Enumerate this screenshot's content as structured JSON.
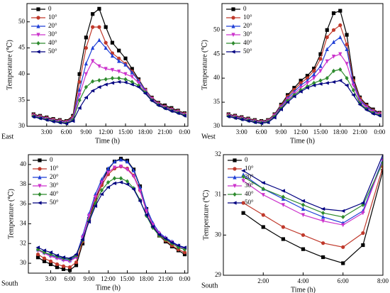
{
  "chart_data": [
    {
      "type": "line",
      "corner_label": "East",
      "x_label": "Time (h)",
      "y_label": "Temperature (℃)",
      "legend": "upper left",
      "x": [
        1,
        2,
        3,
        4,
        5,
        6,
        7,
        8,
        9,
        10,
        11,
        12,
        13,
        14,
        15,
        16,
        17,
        18,
        19,
        20,
        21,
        22,
        23,
        24
      ],
      "xlim": [
        0,
        24.5
      ],
      "ylim": [
        30,
        53.5
      ],
      "xticks": [
        {
          "value": 3,
          "label": "3:00"
        },
        {
          "value": 6,
          "label": "6:00"
        },
        {
          "value": 9,
          "label": "9:00"
        },
        {
          "value": 12,
          "label": "12:00"
        },
        {
          "value": 15,
          "label": "15:00"
        },
        {
          "value": 18,
          "label": "18:00"
        },
        {
          "value": 21,
          "label": "21:00"
        },
        {
          "value": 24,
          "label": "0:00"
        }
      ],
      "yticks": [
        30,
        35,
        40,
        45,
        50
      ],
      "series": [
        {
          "name": "0",
          "color": "#000000",
          "values": [
            32.3,
            32.0,
            31.7,
            31.4,
            31.2,
            31.0,
            32,
            40,
            47,
            51.5,
            52.5,
            49,
            46,
            44.5,
            43,
            41,
            39,
            37,
            35.5,
            34.5,
            34,
            33.5,
            33,
            32.5
          ]
        },
        {
          "name": "10°",
          "color": "#c0392b",
          "values": [
            32.2,
            31.9,
            31.6,
            31.3,
            31.1,
            30.9,
            31.8,
            38.5,
            45,
            49,
            49,
            46,
            44,
            43,
            42,
            40.5,
            38.8,
            37,
            35.4,
            34.4,
            33.8,
            33.3,
            32.9,
            32.4
          ]
        },
        {
          "name": "20°",
          "color": "#1f3fd6",
          "values": [
            32.1,
            31.8,
            31.5,
            31.2,
            31.0,
            30.8,
            31.6,
            37,
            42,
            45,
            46.5,
            45,
            43.5,
            42.5,
            41.8,
            40.3,
            38.7,
            36.9,
            35.3,
            34.3,
            33.7,
            33.2,
            32.8,
            32.3
          ]
        },
        {
          "name": "30°",
          "color": "#cc33cc",
          "values": [
            32.0,
            31.7,
            31.4,
            31.1,
            30.9,
            30.7,
            31.4,
            36,
            40,
            42.5,
            41.5,
            41,
            40.8,
            40.5,
            40,
            39.5,
            38.3,
            36.7,
            35.2,
            34.2,
            33.6,
            33.1,
            32.7,
            32.2
          ]
        },
        {
          "name": "40°",
          "color": "#2e8b2e",
          "values": [
            31.9,
            31.6,
            31.3,
            31.0,
            30.8,
            30.6,
            31.2,
            35,
            37.5,
            38.6,
            38.8,
            39,
            39.2,
            39.2,
            39,
            38.5,
            37.8,
            36.5,
            35,
            34.1,
            33.5,
            33,
            32.6,
            32.1
          ]
        },
        {
          "name": "50°",
          "color": "#000080",
          "values": [
            31.8,
            31.5,
            31.2,
            30.9,
            30.7,
            30.5,
            31,
            33.5,
            35.5,
            36.8,
            37.5,
            38,
            38.3,
            38.5,
            38.4,
            38,
            37.5,
            36.3,
            34.9,
            34,
            33.4,
            32.9,
            32.5,
            32.0
          ]
        }
      ]
    },
    {
      "type": "line",
      "corner_label": "West",
      "x_label": "Time (h)",
      "y_label": "Temperature (℃)",
      "legend": "upper left",
      "x": [
        1,
        2,
        3,
        4,
        5,
        6,
        7,
        8,
        9,
        10,
        11,
        12,
        13,
        14,
        15,
        16,
        17,
        18,
        19,
        20,
        21,
        22,
        23,
        24
      ],
      "xlim": [
        0,
        24.5
      ],
      "ylim": [
        30,
        55.5
      ],
      "xticks": [
        {
          "value": 3,
          "label": "3:00"
        },
        {
          "value": 6,
          "label": "6:00"
        },
        {
          "value": 9,
          "label": "9:00"
        },
        {
          "value": 12,
          "label": "12:00"
        },
        {
          "value": 15,
          "label": "15:00"
        },
        {
          "value": 18,
          "label": "18:00"
        },
        {
          "value": 21,
          "label": "21:00"
        },
        {
          "value": 24,
          "label": "0:00"
        }
      ],
      "yticks": [
        30,
        35,
        40,
        45,
        50
      ],
      "series": [
        {
          "name": "0",
          "color": "#000000",
          "values": [
            32.5,
            32.2,
            31.9,
            31.6,
            31.3,
            31.1,
            31.3,
            32.5,
            34.5,
            36.5,
            38,
            39.5,
            40.5,
            42,
            45,
            50,
            53.5,
            54,
            49,
            40,
            36,
            34.5,
            33.5,
            32.8
          ]
        },
        {
          "name": "10°",
          "color": "#c0392b",
          "values": [
            32.4,
            32.1,
            31.8,
            31.5,
            31.2,
            31.0,
            31.2,
            32.4,
            34.3,
            36.2,
            37.6,
            39,
            40,
            41.5,
            44,
            48.5,
            50,
            51,
            47,
            39.5,
            35.8,
            34.3,
            33.3,
            32.7
          ]
        },
        {
          "name": "20°",
          "color": "#1f3fd6",
          "values": [
            32.3,
            32,
            31.7,
            31.4,
            31.1,
            30.9,
            31.1,
            32.3,
            34.1,
            35.9,
            37.2,
            38.5,
            39.5,
            40.8,
            42.5,
            46,
            47.5,
            48.5,
            46,
            39,
            35.5,
            34.1,
            33.2,
            32.6
          ]
        },
        {
          "name": "30°",
          "color": "#cc33cc",
          "values": [
            32.2,
            31.9,
            31.6,
            31.3,
            31,
            30.8,
            31,
            32.2,
            33.9,
            35.6,
            36.8,
            38,
            39,
            40,
            41.5,
            43.5,
            44.5,
            45,
            43,
            38.5,
            35.2,
            33.9,
            33,
            32.5
          ]
        },
        {
          "name": "40°",
          "color": "#2e8b2e",
          "values": [
            32.1,
            31.8,
            31.5,
            31.2,
            30.9,
            30.7,
            30.9,
            32,
            33.7,
            35.3,
            36.5,
            37.5,
            38.3,
            39,
            39.5,
            40,
            41.5,
            41.8,
            40,
            37.5,
            34.8,
            33.6,
            32.8,
            32.3
          ]
        },
        {
          "name": "50°",
          "color": "#000080",
          "values": [
            32,
            31.7,
            31.4,
            31.1,
            30.8,
            30.6,
            30.8,
            31.8,
            33.5,
            35,
            36.2,
            37.2,
            38,
            38.5,
            38.8,
            39,
            39.2,
            39.5,
            38.5,
            36.5,
            34.5,
            33.4,
            32.6,
            32.2
          ]
        }
      ]
    },
    {
      "type": "line",
      "corner_label": "South",
      "x_label": "Time (h)",
      "y_label": "Temperature (℃)",
      "legend": "upper left",
      "x": [
        1,
        2,
        3,
        4,
        5,
        6,
        7,
        8,
        9,
        10,
        11,
        12,
        13,
        14,
        15,
        16,
        17,
        18,
        19,
        20,
        21,
        22,
        23,
        24
      ],
      "xlim": [
        -0.5,
        24.5
      ],
      "ylim": [
        29,
        41
      ],
      "xticks": [
        {
          "value": 3,
          "label": "3:00"
        },
        {
          "value": 6,
          "label": "6:00"
        },
        {
          "value": 9,
          "label": "9:00"
        },
        {
          "value": 12,
          "label": "12:00"
        },
        {
          "value": 15,
          "label": "15:00"
        },
        {
          "value": 18,
          "label": "18:00"
        },
        {
          "value": 21,
          "label": "21:00"
        },
        {
          "value": 24,
          "label": "0:00"
        }
      ],
      "yticks": [
        30,
        32,
        34,
        36,
        38,
        40
      ],
      "series": [
        {
          "name": "0",
          "color": "#000000",
          "values": [
            30.6,
            30.2,
            29.9,
            29.6,
            29.4,
            29.3,
            29.8,
            32,
            34.5,
            36.5,
            38.2,
            39.5,
            40.3,
            40.6,
            40.4,
            39.5,
            37.8,
            35.5,
            33.8,
            32.8,
            32.2,
            31.7,
            31.3,
            30.9
          ]
        },
        {
          "name": "10°",
          "color": "#c0392b",
          "values": [
            30.9,
            30.5,
            30.2,
            29.9,
            29.7,
            29.6,
            30.1,
            32.2,
            34.4,
            36.3,
            37.9,
            39,
            39.6,
            39.8,
            39.6,
            38.9,
            37.4,
            35.3,
            33.8,
            32.8,
            32.3,
            31.8,
            31.4,
            31.1
          ]
        },
        {
          "name": "20°",
          "color": "#1f3fd6",
          "values": [
            31.4,
            31.1,
            30.8,
            30.6,
            30.4,
            30.3,
            30.7,
            32.8,
            35,
            37,
            38.5,
            39.6,
            40.3,
            40.5,
            40.3,
            39.4,
            37.7,
            35.6,
            34.1,
            33.1,
            32.6,
            32.2,
            31.8,
            31.5
          ]
        },
        {
          "name": "30°",
          "color": "#cc33cc",
          "values": [
            31.3,
            31,
            30.7,
            30.5,
            30.3,
            30.2,
            30.6,
            32.6,
            34.8,
            36.7,
            38.2,
            39.2,
            39.7,
            39.8,
            39.5,
            38.8,
            37.3,
            35.3,
            33.9,
            33,
            32.5,
            32.1,
            31.7,
            31.4
          ]
        },
        {
          "name": "40°",
          "color": "#2e8b2e",
          "values": [
            31.4,
            31.1,
            30.9,
            30.7,
            30.5,
            30.4,
            30.8,
            32.3,
            34.3,
            36.1,
            37.4,
            38.2,
            38.6,
            38.6,
            38.3,
            37.6,
            36.4,
            34.8,
            33.6,
            32.8,
            32.4,
            32,
            31.6,
            31.4
          ]
        },
        {
          "name": "50°",
          "color": "#000080",
          "values": [
            31.6,
            31.3,
            31.1,
            30.8,
            30.6,
            30.5,
            30.9,
            32.4,
            34.2,
            35.8,
            37,
            37.7,
            38.1,
            38.2,
            38,
            37.5,
            36.3,
            34.9,
            33.7,
            32.9,
            32.5,
            32.1,
            31.8,
            31.6
          ]
        }
      ]
    },
    {
      "type": "line",
      "corner_label": "South",
      "x_label": "Time (h)",
      "y_label": "Temperature (℃)",
      "legend": "upper left",
      "x": [
        1,
        2,
        3,
        4,
        5,
        6,
        7,
        8
      ],
      "xlim": [
        0,
        8
      ],
      "ylim": [
        29,
        32
      ],
      "xticks": [
        {
          "value": 2,
          "label": "2:00"
        },
        {
          "value": 4,
          "label": "4:00"
        },
        {
          "value": 6,
          "label": "6:00"
        },
        {
          "value": 8,
          "label": "8:00"
        }
      ],
      "yticks": [
        29,
        30,
        31,
        32
      ],
      "series": [
        {
          "name": "0",
          "color": "#000000",
          "values": [
            30.55,
            30.2,
            29.9,
            29.65,
            29.45,
            29.3,
            29.75,
            31.6
          ]
        },
        {
          "name": "10°",
          "color": "#c0392b",
          "values": [
            30.8,
            30.5,
            30.2,
            30.0,
            29.8,
            29.7,
            30.05,
            31.7
          ]
        },
        {
          "name": "20°",
          "color": "#1f3fd6",
          "values": [
            31.5,
            31.15,
            30.9,
            30.65,
            30.45,
            30.3,
            30.6,
            31.9
          ]
        },
        {
          "name": "30°",
          "color": "#cc33cc",
          "values": [
            31.35,
            31.0,
            30.75,
            30.5,
            30.35,
            30.25,
            30.55,
            31.85
          ]
        },
        {
          "name": "40°",
          "color": "#2e8b2e",
          "values": [
            31.45,
            31.15,
            30.95,
            30.75,
            30.55,
            30.45,
            30.75,
            31.8
          ]
        },
        {
          "name": "50°",
          "color": "#000080",
          "values": [
            31.6,
            31.3,
            31.1,
            30.85,
            30.65,
            30.6,
            30.8,
            32.0
          ]
        }
      ]
    }
  ]
}
